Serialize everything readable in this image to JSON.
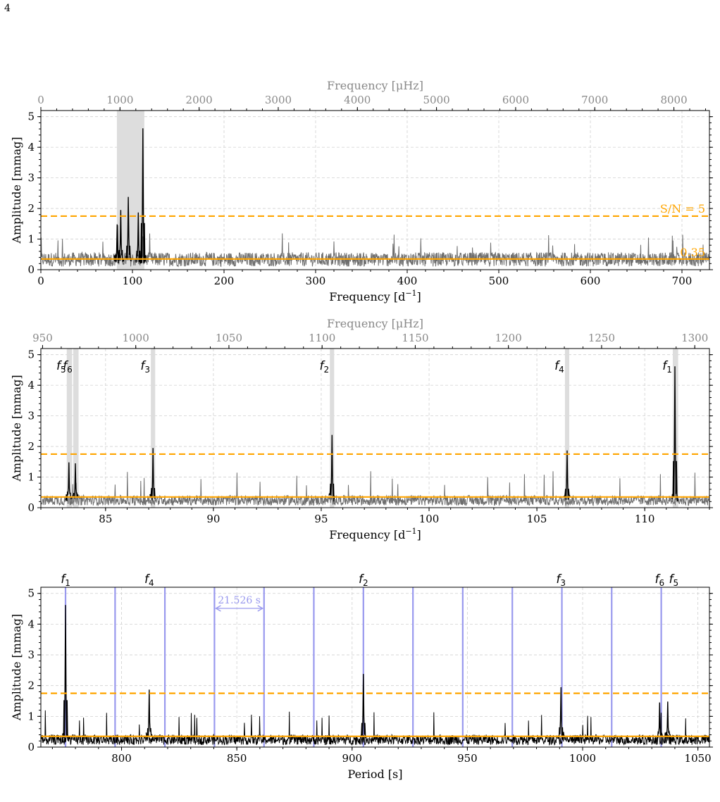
{
  "page_number": "4",
  "colors": {
    "noise": "#6e6e6e",
    "signal": "#000000",
    "threshold": "#ffa500",
    "highlight": "#dddddd",
    "grid": "#d0d0d0",
    "spacing_lines": "#9999ee",
    "top_axis": "#888888"
  },
  "chart_data": [
    {
      "type": "line",
      "id": "panel1",
      "xlabel": "Frequency [d$^{-1}$]",
      "xlabel_main": "Frequency [d",
      "xlabel_sup": "−1",
      "xlabel_end": "]",
      "ylabel": "Amplitude [mmag]",
      "top_xlabel": "Frequency [μHz]",
      "xlim": [
        0,
        730
      ],
      "ylim": [
        0,
        5.2
      ],
      "xticks": [
        0,
        100,
        200,
        300,
        400,
        500,
        600,
        700
      ],
      "yticks": [
        0,
        1,
        2,
        3,
        4,
        5
      ],
      "top_xticks": [
        0,
        1000,
        2000,
        3000,
        4000,
        5000,
        6000,
        7000,
        8000
      ],
      "grid": true,
      "highlight_ranges": [
        [
          83,
          113
        ]
      ],
      "snr_threshold": 1.75,
      "snr_label": "S/N = 5",
      "mean_noise": 0.35,
      "mean_noise_label": "0.35",
      "noise_level": 0.42,
      "noise_max": 1.2,
      "peaks": [
        {
          "x": 83.3,
          "y": 1.48
        },
        {
          "x": 83.6,
          "y": 1.45
        },
        {
          "x": 87.2,
          "y": 1.95
        },
        {
          "x": 95.5,
          "y": 2.38
        },
        {
          "x": 106.4,
          "y": 1.87
        },
        {
          "x": 111.4,
          "y": 4.62
        }
      ]
    },
    {
      "type": "line",
      "id": "panel2",
      "xlabel": "Frequency [d$^{-1}$]",
      "xlabel_main": "Frequency [d",
      "xlabel_sup": "−1",
      "xlabel_end": "]",
      "ylabel": "Amplitude [mmag]",
      "top_xlabel": "Frequency [μHz]",
      "xlim": [
        82,
        113
      ],
      "ylim": [
        0,
        5.2
      ],
      "xticks": [
        85,
        90,
        95,
        100,
        105,
        110
      ],
      "yticks": [
        0,
        1,
        2,
        3,
        4,
        5
      ],
      "top_xticks": [
        950,
        1000,
        1050,
        1100,
        1150,
        1200,
        1250,
        1300
      ],
      "grid": true,
      "highlight_ranges": [
        [
          83.2,
          83.45
        ],
        [
          83.5,
          83.75
        ],
        [
          87.1,
          87.3
        ],
        [
          95.4,
          95.6
        ],
        [
          106.3,
          106.5
        ],
        [
          111.3,
          111.55
        ]
      ],
      "snr_threshold": 1.75,
      "mean_noise": 0.35,
      "noise_level": 0.3,
      "noise_max": 1.2,
      "peaks": [
        {
          "x": 83.3,
          "y": 1.48
        },
        {
          "x": 83.6,
          "y": 1.45
        },
        {
          "x": 87.2,
          "y": 1.95
        },
        {
          "x": 95.5,
          "y": 2.38
        },
        {
          "x": 106.4,
          "y": 1.87
        },
        {
          "x": 111.4,
          "y": 4.62
        }
      ],
      "annotations": [
        {
          "label": "f",
          "sub": "5",
          "x": 83.3
        },
        {
          "label": "f",
          "sub": "6",
          "x": 83.6
        },
        {
          "label": "f",
          "sub": "3",
          "x": 87.2
        },
        {
          "label": "f",
          "sub": "2",
          "x": 95.5
        },
        {
          "label": "f",
          "sub": "4",
          "x": 106.4
        },
        {
          "label": "f",
          "sub": "1",
          "x": 111.4
        }
      ]
    },
    {
      "type": "line",
      "id": "panel3",
      "xlabel": "Period [s]",
      "ylabel": "Amplitude [mmag]",
      "xlim": [
        765,
        1055
      ],
      "ylim": [
        0,
        5.2
      ],
      "xticks": [
        800,
        850,
        900,
        950,
        1000,
        1050
      ],
      "yticks": [
        0,
        1,
        2,
        3,
        4,
        5
      ],
      "grid": true,
      "snr_threshold": 1.75,
      "mean_noise": 0.35,
      "noise_level": 0.3,
      "noise_max": 1.2,
      "period_spacing": 21.526,
      "period_spacing_label": "21.526 s",
      "spacing_lines": [
        775.7,
        797.2,
        818.8,
        840.3,
        861.8,
        883.4,
        904.9,
        926.4,
        948.0,
        969.5,
        991.0,
        1012.6,
        1034.1
      ],
      "spacing_arrow": [
        840.3,
        861.8
      ],
      "peaks": [
        {
          "x": 775.7,
          "y": 4.62
        },
        {
          "x": 812.0,
          "y": 1.87
        },
        {
          "x": 904.9,
          "y": 2.38
        },
        {
          "x": 990.6,
          "y": 1.95
        },
        {
          "x": 1033.4,
          "y": 1.45
        },
        {
          "x": 1036.9,
          "y": 1.48
        }
      ],
      "annotations": [
        {
          "label": "f",
          "sub": "1",
          "x": 775.7
        },
        {
          "label": "f",
          "sub": "4",
          "x": 812.0
        },
        {
          "label": "f",
          "sub": "2",
          "x": 904.9
        },
        {
          "label": "f",
          "sub": "3",
          "x": 990.6
        },
        {
          "label": "f",
          "sub": "6",
          "x": 1033.4
        },
        {
          "label": "f",
          "sub": "5",
          "x": 1039.5
        }
      ]
    }
  ]
}
